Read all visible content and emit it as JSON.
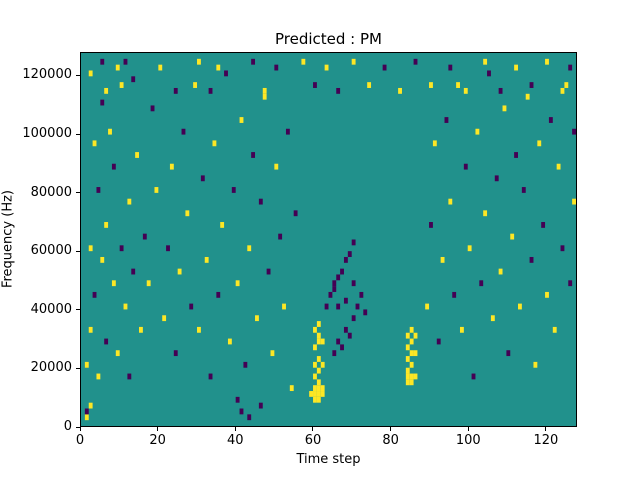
{
  "chart_data": {
    "type": "heatmap",
    "title": "Predicted : PM",
    "xlabel": "Time step",
    "ylabel": "Frequency (Hz)",
    "xlim": [
      0,
      128
    ],
    "ylim": [
      0,
      128000
    ],
    "x_bins": 128,
    "y_bins": 64,
    "freq_per_bin_hz": 2000,
    "xticks": [
      0,
      20,
      40,
      60,
      80,
      100,
      120
    ],
    "yticks": [
      0,
      20000,
      40000,
      60000,
      80000,
      100000,
      120000
    ],
    "grid": "off",
    "legend": "none",
    "colors": {
      "background": "#21918c",
      "low": "#440154",
      "high": "#fde725"
    },
    "value_legend": "cells are [time_bin, freq_bin, value]; value 0 = low (dark purple), 1 = high (yellow); background = mid (teal)",
    "cells": [
      [
        59,
        5,
        1
      ],
      [
        60,
        4,
        1
      ],
      [
        60,
        5,
        1
      ],
      [
        60,
        6,
        1
      ],
      [
        61,
        4,
        1
      ],
      [
        61,
        5,
        1
      ],
      [
        61,
        6,
        1
      ],
      [
        61,
        7,
        1
      ],
      [
        62,
        5,
        1
      ],
      [
        62,
        6,
        1
      ],
      [
        60,
        8,
        1
      ],
      [
        61,
        9,
        1
      ],
      [
        60,
        10,
        1
      ],
      [
        61,
        11,
        1
      ],
      [
        62,
        10,
        1
      ],
      [
        60,
        13,
        1
      ],
      [
        61,
        14,
        1
      ],
      [
        61,
        15,
        1
      ],
      [
        62,
        14,
        1
      ],
      [
        60,
        16,
        1
      ],
      [
        61,
        17,
        1
      ],
      [
        84,
        7,
        1
      ],
      [
        85,
        7,
        1
      ],
      [
        84,
        8,
        1
      ],
      [
        85,
        8,
        1
      ],
      [
        86,
        8,
        1
      ],
      [
        84,
        9,
        1
      ],
      [
        85,
        10,
        1
      ],
      [
        84,
        11,
        1
      ],
      [
        85,
        12,
        1
      ],
      [
        86,
        12,
        1
      ],
      [
        84,
        13,
        1
      ],
      [
        85,
        14,
        1
      ],
      [
        84,
        15,
        1
      ],
      [
        85,
        16,
        1
      ],
      [
        86,
        15,
        1
      ],
      [
        65,
        12,
        0
      ],
      [
        66,
        14,
        0
      ],
      [
        67,
        13,
        0
      ],
      [
        68,
        16,
        0
      ],
      [
        69,
        15,
        0
      ],
      [
        70,
        18,
        0
      ],
      [
        66,
        20,
        0
      ],
      [
        68,
        21,
        0
      ],
      [
        71,
        20,
        0
      ],
      [
        72,
        22,
        0
      ],
      [
        73,
        19,
        0
      ],
      [
        65,
        24,
        0
      ],
      [
        70,
        24,
        0
      ],
      [
        63,
        20,
        0
      ],
      [
        64,
        22,
        0
      ],
      [
        65,
        23,
        0
      ],
      [
        66,
        25,
        0
      ],
      [
        67,
        26,
        0
      ],
      [
        68,
        28,
        0
      ],
      [
        69,
        29,
        0
      ],
      [
        70,
        31,
        0
      ],
      [
        1,
        1,
        1
      ],
      [
        2,
        3,
        1
      ],
      [
        1,
        2,
        0
      ],
      [
        1,
        10,
        1
      ],
      [
        2,
        16,
        1
      ],
      [
        2,
        30,
        1
      ],
      [
        3,
        22,
        0
      ],
      [
        3,
        48,
        1
      ],
      [
        4,
        8,
        1
      ],
      [
        4,
        40,
        0
      ],
      [
        5,
        28,
        1
      ],
      [
        5,
        55,
        0
      ],
      [
        6,
        14,
        0
      ],
      [
        6,
        34,
        1
      ],
      [
        7,
        50,
        1
      ],
      [
        8,
        24,
        1
      ],
      [
        8,
        44,
        0
      ],
      [
        9,
        12,
        1
      ],
      [
        10,
        30,
        0
      ],
      [
        10,
        58,
        1
      ],
      [
        11,
        20,
        1
      ],
      [
        12,
        38,
        1
      ],
      [
        12,
        8,
        0
      ],
      [
        13,
        26,
        0
      ],
      [
        14,
        46,
        1
      ],
      [
        15,
        16,
        1
      ],
      [
        16,
        32,
        0
      ],
      [
        17,
        24,
        1
      ],
      [
        18,
        54,
        0
      ],
      [
        19,
        40,
        1
      ],
      [
        2,
        60,
        1
      ],
      [
        5,
        62,
        0
      ],
      [
        9,
        61,
        1
      ],
      [
        13,
        59,
        0
      ],
      [
        21,
        18,
        1
      ],
      [
        22,
        30,
        0
      ],
      [
        23,
        44,
        1
      ],
      [
        24,
        12,
        0
      ],
      [
        25,
        26,
        1
      ],
      [
        26,
        50,
        0
      ],
      [
        27,
        36,
        1
      ],
      [
        28,
        20,
        0
      ],
      [
        29,
        58,
        1
      ],
      [
        30,
        16,
        1
      ],
      [
        31,
        42,
        0
      ],
      [
        32,
        28,
        1
      ],
      [
        33,
        8,
        0
      ],
      [
        34,
        48,
        1
      ],
      [
        35,
        22,
        0
      ],
      [
        36,
        34,
        1
      ],
      [
        37,
        60,
        0
      ],
      [
        38,
        14,
        1
      ],
      [
        39,
        40,
        0
      ],
      [
        40,
        24,
        1
      ],
      [
        41,
        52,
        1
      ],
      [
        42,
        10,
        0
      ],
      [
        43,
        30,
        1
      ],
      [
        44,
        46,
        0
      ],
      [
        45,
        18,
        1
      ],
      [
        46,
        38,
        0
      ],
      [
        47,
        56,
        1
      ],
      [
        48,
        26,
        0
      ],
      [
        49,
        12,
        1
      ],
      [
        50,
        44,
        1
      ],
      [
        51,
        32,
        0
      ],
      [
        52,
        20,
        1
      ],
      [
        53,
        50,
        0
      ],
      [
        54,
        6,
        1
      ],
      [
        55,
        36,
        0
      ],
      [
        41,
        2,
        0
      ],
      [
        43,
        1,
        0
      ],
      [
        46,
        3,
        0
      ],
      [
        40,
        4,
        0
      ],
      [
        89,
        20,
        1
      ],
      [
        90,
        34,
        0
      ],
      [
        91,
        48,
        1
      ],
      [
        92,
        14,
        0
      ],
      [
        93,
        28,
        1
      ],
      [
        94,
        52,
        0
      ],
      [
        95,
        38,
        1
      ],
      [
        96,
        22,
        0
      ],
      [
        97,
        58,
        1
      ],
      [
        98,
        16,
        1
      ],
      [
        99,
        44,
        0
      ],
      [
        100,
        30,
        1
      ],
      [
        101,
        8,
        0
      ],
      [
        102,
        50,
        1
      ],
      [
        103,
        24,
        0
      ],
      [
        104,
        36,
        1
      ],
      [
        105,
        60,
        0
      ],
      [
        106,
        18,
        1
      ],
      [
        107,
        42,
        0
      ],
      [
        108,
        26,
        1
      ],
      [
        109,
        54,
        1
      ],
      [
        110,
        12,
        0
      ],
      [
        111,
        32,
        1
      ],
      [
        112,
        46,
        0
      ],
      [
        113,
        20,
        1
      ],
      [
        114,
        40,
        0
      ],
      [
        115,
        56,
        1
      ],
      [
        116,
        28,
        0
      ],
      [
        117,
        10,
        1
      ],
      [
        118,
        48,
        1
      ],
      [
        119,
        34,
        0
      ],
      [
        120,
        22,
        1
      ],
      [
        121,
        52,
        0
      ],
      [
        122,
        16,
        1
      ],
      [
        123,
        44,
        1
      ],
      [
        124,
        30,
        0
      ],
      [
        125,
        58,
        1
      ],
      [
        126,
        24,
        0
      ],
      [
        127,
        38,
        1
      ],
      [
        127,
        50,
        0
      ],
      [
        6,
        57,
        1
      ],
      [
        11,
        62,
        0
      ],
      [
        20,
        61,
        1
      ],
      [
        24,
        57,
        0
      ],
      [
        30,
        62,
        1
      ],
      [
        33,
        57,
        0
      ],
      [
        35,
        61,
        1
      ],
      [
        44,
        62,
        0
      ],
      [
        47,
        57,
        1
      ],
      [
        50,
        61,
        0
      ],
      [
        57,
        62,
        1
      ],
      [
        60,
        58,
        0
      ],
      [
        63,
        61,
        1
      ],
      [
        66,
        57,
        0
      ],
      [
        70,
        62,
        1
      ],
      [
        74,
        58,
        1
      ],
      [
        78,
        61,
        0
      ],
      [
        82,
        57,
        1
      ],
      [
        86,
        62,
        0
      ],
      [
        90,
        58,
        1
      ],
      [
        95,
        61,
        0
      ],
      [
        99,
        57,
        1
      ],
      [
        104,
        62,
        1
      ],
      [
        108,
        57,
        0
      ],
      [
        112,
        61,
        1
      ],
      [
        116,
        58,
        0
      ],
      [
        120,
        62,
        1
      ],
      [
        124,
        57,
        1
      ],
      [
        126,
        61,
        0
      ]
    ]
  }
}
